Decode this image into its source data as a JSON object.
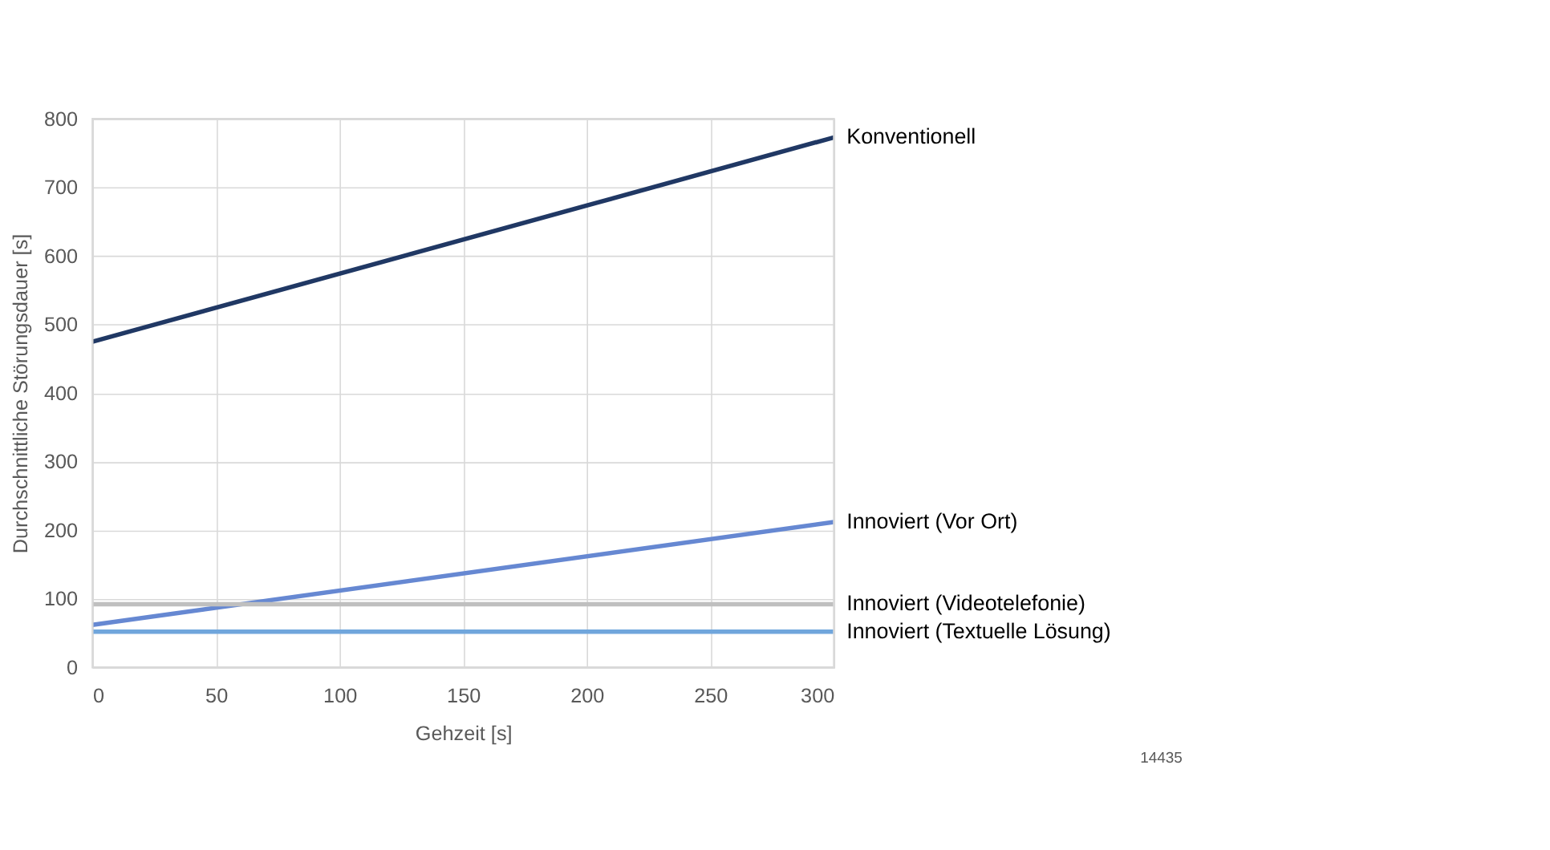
{
  "chart_data": {
    "type": "line",
    "xlabel": "Gehzeit [s]",
    "ylabel": "Durchschnittliche Störungsdauer [s]",
    "x": [
      0,
      300
    ],
    "series": [
      {
        "name": "Konventionell",
        "color": "#203864",
        "values": [
          475,
          773
        ]
      },
      {
        "name": "Innoviert (Vor Ort)",
        "color": "#6688d2",
        "values": [
          62,
          212
        ]
      },
      {
        "name": "Innoviert (Videotelefonie)",
        "color": "#bfbfbf",
        "values": [
          92,
          92
        ]
      },
      {
        "name": "Innoviert (Textuelle Lösung)",
        "color": "#70a6dc",
        "values": [
          52,
          52
        ]
      }
    ],
    "xlim": [
      0,
      300
    ],
    "xticks": [
      0,
      50,
      100,
      150,
      200,
      250,
      300
    ],
    "ylim": [
      0,
      800
    ],
    "yticks": [
      0,
      100,
      200,
      300,
      400,
      500,
      600,
      700,
      800
    ],
    "grid": true,
    "legend": false,
    "marker": "none",
    "line_style": "solid",
    "annotations": [
      "14435"
    ]
  }
}
